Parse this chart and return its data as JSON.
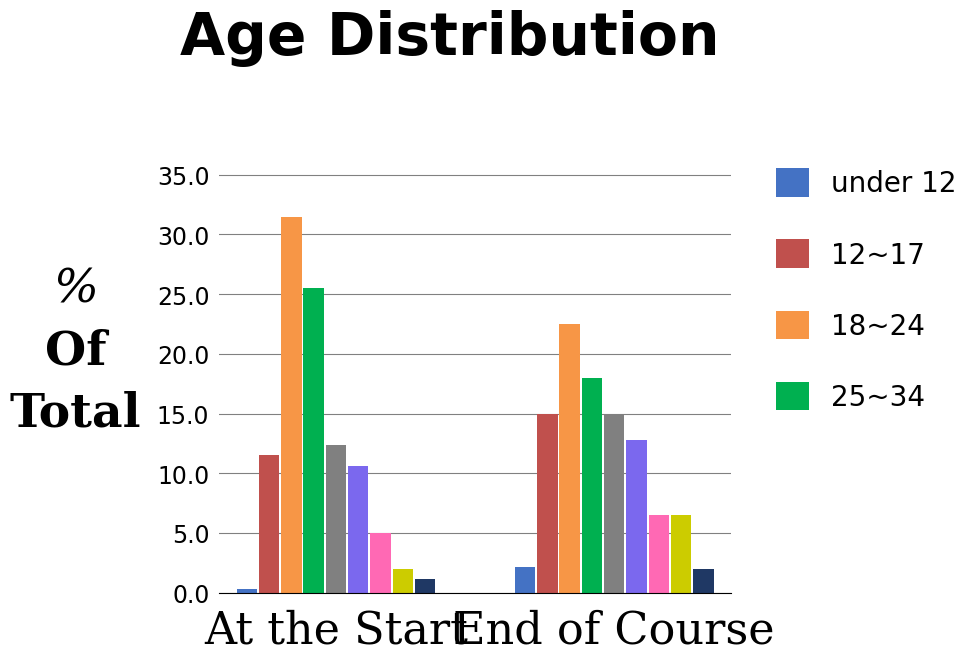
{
  "title": "Age Distribution",
  "ylabel_lines": [
    "%",
    "Of",
    "Total"
  ],
  "ylabel_fontstyles": [
    "italic",
    "normal",
    "normal"
  ],
  "xlabel_categories": [
    "At the Start",
    "End of Course"
  ],
  "legend_labels": [
    "under 12",
    "12~17",
    "18~24",
    "25~34"
  ],
  "legend_colors": [
    "#4472C4",
    "#C0504D",
    "#F79646",
    "#00B050"
  ],
  "bar_groups": [
    {
      "label": "At the Start",
      "values": [
        0.3,
        11.5,
        31.5,
        25.5,
        12.4,
        10.6,
        5.0,
        2.0,
        1.2
      ],
      "colors": [
        "#4472C4",
        "#C0504D",
        "#F79646",
        "#00B050",
        "#808080",
        "#7B68EE",
        "#FF69B4",
        "#CCCC00",
        "#1F3864"
      ]
    },
    {
      "label": "End of Course",
      "values": [
        2.2,
        15.0,
        22.5,
        18.0,
        15.0,
        12.8,
        6.5,
        6.5,
        2.0
      ],
      "colors": [
        "#4472C4",
        "#C0504D",
        "#F79646",
        "#00B050",
        "#808080",
        "#7B68EE",
        "#FF69B4",
        "#CCCC00",
        "#1F3864"
      ]
    }
  ],
  "ylim": [
    0,
    36
  ],
  "yticks": [
    0.0,
    5.0,
    10.0,
    15.0,
    20.0,
    25.0,
    30.0,
    35.0
  ],
  "background_color": "#FFFFFF",
  "title_fontsize": 42,
  "legend_fontsize": 20,
  "xlabel_fontsize": 32,
  "ytick_fontsize": 17,
  "ylabel_fontsize": 34
}
